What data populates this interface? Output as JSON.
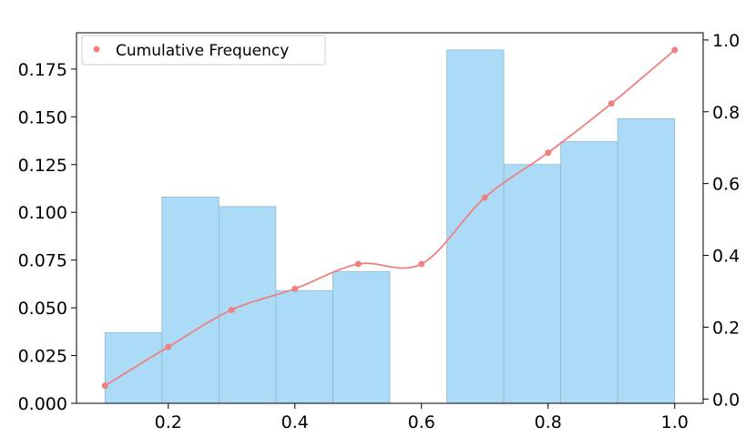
{
  "chart_data": {
    "type": "bar+line",
    "bars": {
      "bins": [
        {
          "x0": 0.1,
          "x1": 0.19,
          "value": 0.037
        },
        {
          "x0": 0.19,
          "x1": 0.28,
          "value": 0.108
        },
        {
          "x0": 0.28,
          "x1": 0.37,
          "value": 0.103
        },
        {
          "x0": 0.37,
          "x1": 0.46,
          "value": 0.059
        },
        {
          "x0": 0.46,
          "x1": 0.55,
          "value": 0.069
        },
        {
          "x0": 0.55,
          "x1": 0.64,
          "value": 0.0
        },
        {
          "x0": 0.64,
          "x1": 0.73,
          "value": 0.185
        },
        {
          "x0": 0.73,
          "x1": 0.82,
          "value": 0.125
        },
        {
          "x0": 0.82,
          "x1": 0.91,
          "value": 0.137
        },
        {
          "x0": 0.91,
          "x1": 1.0,
          "value": 0.149
        }
      ],
      "color": "#abdbf7",
      "edge_color": "#8fb8cf"
    },
    "line": {
      "name": "Cumulative Frequency",
      "x": [
        0.1,
        0.2,
        0.3,
        0.4,
        0.5,
        0.6,
        0.7,
        0.8,
        0.9,
        1.0
      ],
      "y": [
        0.037,
        0.145,
        0.248,
        0.307,
        0.376,
        0.376,
        0.561,
        0.686,
        0.823,
        0.972
      ],
      "color": "#f08080"
    },
    "x_axis": {
      "lim": [
        0.055,
        1.045
      ],
      "ticks": [
        0.2,
        0.4,
        0.6,
        0.8,
        1.0
      ],
      "tick_labels": [
        "0.2",
        "0.4",
        "0.6",
        "0.8",
        "1.0"
      ]
    },
    "y_left": {
      "lim": [
        0.0,
        0.194
      ],
      "ticks": [
        0.0,
        0.025,
        0.05,
        0.075,
        0.1,
        0.125,
        0.15,
        0.175
      ],
      "tick_labels": [
        "0.000",
        "0.025",
        "0.050",
        "0.075",
        "0.100",
        "0.125",
        "0.150",
        "0.175"
      ]
    },
    "y_right": {
      "lim": [
        -0.012,
        1.02
      ],
      "ticks": [
        0.0,
        0.2,
        0.4,
        0.6,
        0.8,
        1.0
      ],
      "tick_labels": [
        "0.0",
        "0.2",
        "0.4",
        "0.6",
        "0.8",
        "1.0"
      ]
    },
    "legend": {
      "placement": "top-left",
      "entries": [
        "Cumulative Frequency"
      ]
    },
    "grid": false
  }
}
